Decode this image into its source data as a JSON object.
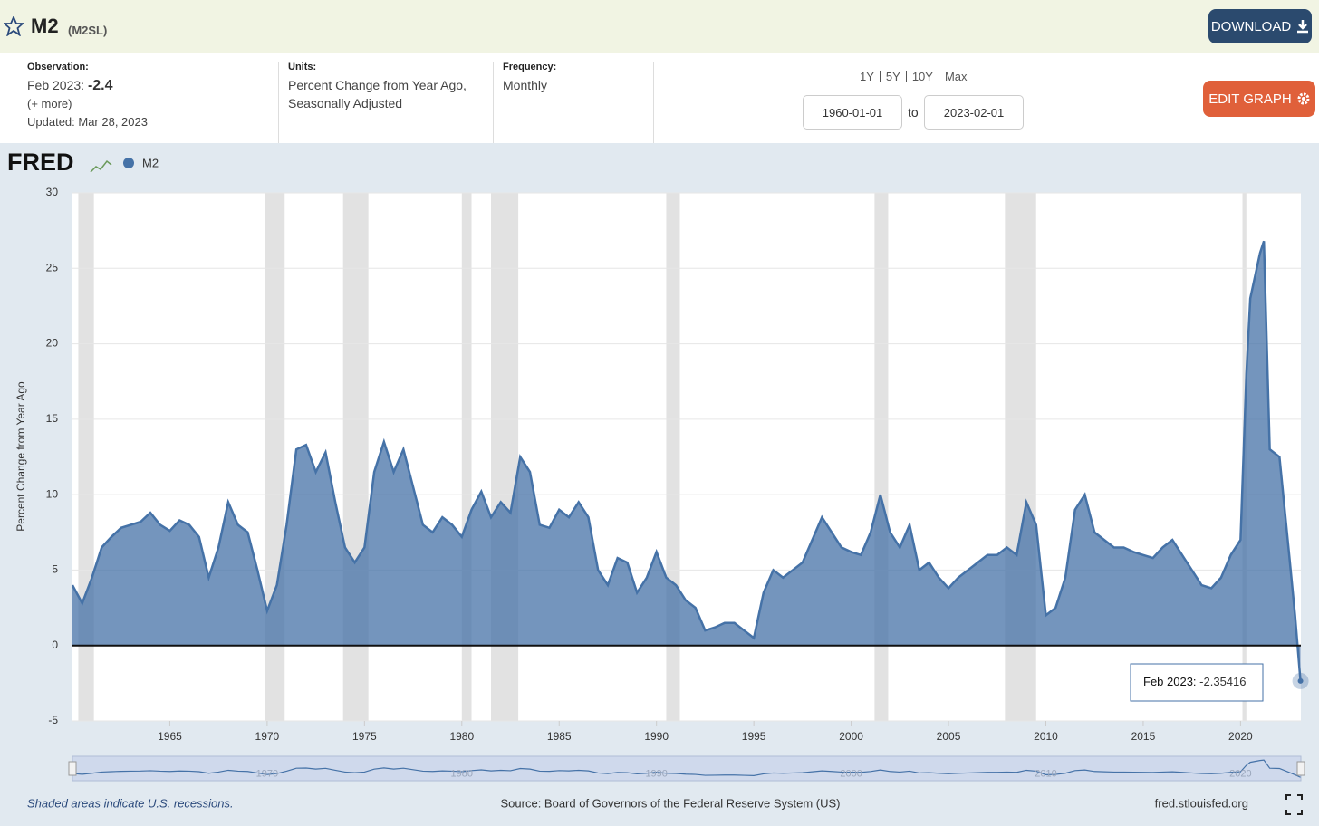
{
  "header": {
    "title": "M2",
    "series_id": "(M2SL)",
    "download": "DOWNLOAD"
  },
  "info": {
    "observation_label": "Observation:",
    "observation_date": "Feb 2023:",
    "observation_value": "-2.4",
    "more": "(+ more)",
    "updated": "Updated: Mar 28, 2023",
    "units_label": "Units:",
    "units": "Percent Change from Year Ago, Seasonally Adjusted",
    "frequency_label": "Frequency:",
    "frequency": "Monthly",
    "ranges": [
      "1Y",
      "5Y",
      "10Y",
      "Max"
    ],
    "start": "1960-01-01",
    "to": "to",
    "end": "2023-02-01",
    "edit": "EDIT GRAPH"
  },
  "chart_data": {
    "type": "area",
    "brand": "FRED",
    "y_label": "Percent Change from Year Ago",
    "x": [
      1960,
      1960.5,
      1961,
      1961.5,
      1962,
      1962.5,
      1963,
      1963.5,
      1964,
      1964.5,
      1965,
      1965.5,
      1966,
      1966.5,
      1967,
      1967.5,
      1968,
      1968.5,
      1969,
      1969.5,
      1970,
      1970.5,
      1971,
      1971.5,
      1972,
      1972.5,
      1973,
      1973.5,
      1974,
      1974.5,
      1975,
      1975.5,
      1976,
      1976.5,
      1977,
      1977.5,
      1978,
      1978.5,
      1979,
      1979.5,
      1980,
      1980.5,
      1981,
      1981.5,
      1982,
      1982.5,
      1983,
      1983.5,
      1984,
      1984.5,
      1985,
      1985.5,
      1986,
      1986.5,
      1987,
      1987.5,
      1988,
      1988.5,
      1989,
      1989.5,
      1990,
      1990.5,
      1991,
      1991.5,
      1992,
      1992.5,
      1993,
      1993.5,
      1994,
      1994.5,
      1995,
      1995.5,
      1996,
      1996.5,
      1997,
      1997.5,
      1998,
      1998.5,
      1999,
      1999.5,
      2000,
      2000.5,
      2001,
      2001.5,
      2002,
      2002.5,
      2003,
      2003.5,
      2004,
      2004.5,
      2005,
      2005.5,
      2006,
      2006.5,
      2007,
      2007.5,
      2008,
      2008.5,
      2009,
      2009.5,
      2010,
      2010.5,
      2011,
      2011.5,
      2012,
      2012.5,
      2013,
      2013.5,
      2014,
      2014.5,
      2015,
      2015.5,
      2016,
      2016.5,
      2017,
      2017.5,
      2018,
      2018.5,
      2019,
      2019.5,
      2020,
      2020.3,
      2020.5,
      2021,
      2021.2,
      2021.5,
      2022,
      2022.5,
      2022.8,
      2023.08
    ],
    "series": [
      {
        "name": "M2",
        "color": "#4572a7",
        "values": [
          4.0,
          2.8,
          4.5,
          6.5,
          7.2,
          7.8,
          8.0,
          8.2,
          8.8,
          8.0,
          7.6,
          8.3,
          8.0,
          7.2,
          4.5,
          6.5,
          9.5,
          8.0,
          7.5,
          5.0,
          2.3,
          4.0,
          8.0,
          13.0,
          13.3,
          11.5,
          12.8,
          9.5,
          6.5,
          5.5,
          6.5,
          11.5,
          13.5,
          11.5,
          13.0,
          10.5,
          8.0,
          7.5,
          8.5,
          8.0,
          7.2,
          9.0,
          10.2,
          8.5,
          9.5,
          8.8,
          12.5,
          11.5,
          8.0,
          7.8,
          9.0,
          8.5,
          9.5,
          8.5,
          5.0,
          4.0,
          5.8,
          5.5,
          3.5,
          4.5,
          6.2,
          4.5,
          4.0,
          3.0,
          2.5,
          1.0,
          1.2,
          1.5,
          1.5,
          1.0,
          0.5,
          3.5,
          5.0,
          4.5,
          5.0,
          5.5,
          7.0,
          8.5,
          7.5,
          6.5,
          6.2,
          6.0,
          7.5,
          10.0,
          7.5,
          6.5,
          8.0,
          5.0,
          5.5,
          4.5,
          3.8,
          4.5,
          5.0,
          5.5,
          6.0,
          6.0,
          6.5,
          6.0,
          9.5,
          8.0,
          2.0,
          2.5,
          4.5,
          9.0,
          10.0,
          7.5,
          7.0,
          6.5,
          6.5,
          6.2,
          6.0,
          5.8,
          6.5,
          7.0,
          6.0,
          5.0,
          4.0,
          3.8,
          4.5,
          6.0,
          7.0,
          18.0,
          23.0,
          26.0,
          26.8,
          13.0,
          12.5,
          6.0,
          2.0,
          -2.35416
        ]
      }
    ],
    "xlim": [
      1960,
      2023.1
    ],
    "xticks": [
      1965,
      1970,
      1975,
      1980,
      1985,
      1990,
      1995,
      2000,
      2005,
      2010,
      2015,
      2020
    ],
    "ylim": [
      -5,
      30
    ],
    "yticks": [
      -5,
      0,
      5,
      10,
      15,
      20,
      25,
      30
    ],
    "grid": true,
    "recessions": [
      [
        1960.3,
        1961.1
      ],
      [
        1969.9,
        1970.9
      ],
      [
        1973.9,
        1975.2
      ],
      [
        1980.0,
        1980.5
      ],
      [
        1981.5,
        1982.9
      ],
      [
        1990.5,
        1991.2
      ],
      [
        2001.2,
        2001.9
      ],
      [
        2007.9,
        2009.5
      ],
      [
        2020.1,
        2020.3
      ]
    ],
    "navigator_ticks": [
      1970,
      1980,
      1990,
      2000,
      2010,
      2020
    ],
    "tooltip_label": "Feb 2023:",
    "note": "Shaded areas indicate U.S. recessions.",
    "source": "Source: Board of Governors of the Federal Reserve System (US)",
    "site": "fred.stlouisfed.org"
  }
}
